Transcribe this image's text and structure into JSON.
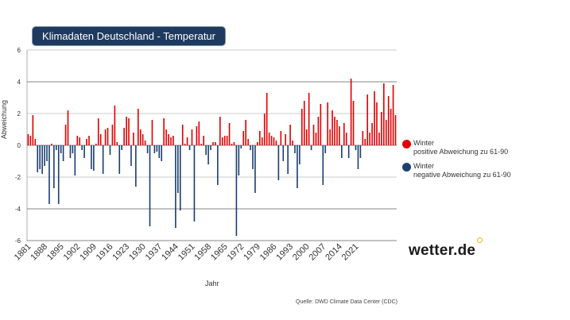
{
  "chart_data": {
    "type": "bar",
    "title": "Klimadaten Deutschland - Temperatur",
    "xlabel": "Jahr",
    "ylabel": "Abweichung",
    "ylim": [
      -6,
      6
    ],
    "yticks": [
      -6,
      -4,
      -2,
      0,
      2,
      4,
      6
    ],
    "xtick_labels": [
      "1881",
      "1888",
      "1895",
      "1902",
      "1909",
      "1916",
      "1923",
      "1930",
      "1937",
      "1944",
      "1951",
      "1958",
      "1965",
      "1972",
      "1979",
      "1986",
      "1993",
      "2000",
      "2007",
      "2014",
      "2021"
    ],
    "start_year": 1881,
    "reference_period": "61-90",
    "series": [
      {
        "name": "Winter",
        "values": [
          0.7,
          0.6,
          1.9,
          0.4,
          -1.7,
          -1.5,
          -1.8,
          -1.3,
          -1.0,
          -3.7,
          0.1,
          -2.7,
          -0.3,
          -3.7,
          -0.5,
          -1.0,
          1.3,
          2.2,
          -0.8,
          -0.5,
          -1.9,
          0.6,
          0.5,
          -0.3,
          -0.8,
          0.4,
          0.6,
          -1.5,
          -1.6,
          0.1,
          1.7,
          0.7,
          -1.8,
          1.0,
          1.1,
          -0.6,
          1.3,
          2.5,
          0.2,
          -1.8,
          -0.3,
          1.1,
          1.8,
          1.7,
          -1.3,
          0.8,
          -2.6,
          2.3,
          1.0,
          0.7,
          0.3,
          -0.5,
          -5.1,
          1.6,
          -0.5,
          -0.4,
          -0.8,
          -1.0,
          1.7,
          1.0,
          0.7,
          0.5,
          0.6,
          -5.2,
          -3.0,
          -4.1,
          1.3,
          0.1,
          0.5,
          -0.3,
          1.0,
          -4.8,
          1.2,
          1.5,
          0.1,
          0.6,
          -0.6,
          -1.2,
          -0.3,
          0.2,
          0.2,
          -2.5,
          1.8,
          0.5,
          0.6,
          0.6,
          1.4,
          0.1,
          0.2,
          -5.7,
          -1.9,
          -0.2,
          0.9,
          1.6,
          0.4,
          -0.3,
          -1.5,
          -3.0,
          0.2,
          0.9,
          0.5,
          2.0,
          3.3,
          0.8,
          0.6,
          0.5,
          0.3,
          -2.2,
          0.9,
          -1.0,
          0.7,
          -1.8,
          1.3,
          0.3,
          -0.5,
          -2.7,
          -1.2,
          2.3,
          2.8,
          1.0,
          3.3,
          -0.3,
          1.3,
          0.8,
          1.8,
          2.6,
          -2.5,
          -0.5,
          2.7,
          1.0,
          2.2,
          1.8,
          1.6,
          1.2,
          -0.8,
          1.4,
          0.8,
          -0.8,
          4.2,
          2.8,
          -0.3,
          -1.5,
          -0.8,
          0.9,
          0.4,
          3.2,
          0.8,
          1.4,
          3.4,
          2.7,
          0.8,
          2.1,
          3.9,
          1.6,
          3.1,
          2.3,
          3.8,
          1.9
        ]
      }
    ],
    "colors": {
      "positive": "#e10000",
      "negative": "#1c3f73",
      "grid": "#6f6f6f"
    }
  },
  "legend": {
    "positive": {
      "line1": "Winter",
      "line2": "positive Abweichung zu 61-90"
    },
    "negative": {
      "line1": "Winter",
      "line2": "negative Abweichung zu 61-90"
    }
  },
  "title_badge": "Klimadaten Deutschland - Temperatur",
  "source": "Quelle: DWD Climate Data Center (CDC)",
  "logo": "wetter.de"
}
